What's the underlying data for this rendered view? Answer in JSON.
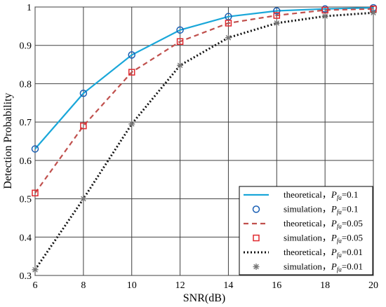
{
  "chart_data": {
    "type": "line",
    "xlabel": "SNR(dB)",
    "ylabel": "Detection Probability",
    "xlim": [
      6,
      20
    ],
    "ylim": [
      0.3,
      1.0
    ],
    "x_ticks": [
      6,
      8,
      10,
      12,
      14,
      16,
      18,
      20
    ],
    "y_ticks": [
      0.3,
      0.4,
      0.5,
      0.6,
      0.7,
      0.8,
      0.9,
      1.0
    ],
    "x_tick_labels": [
      "6",
      "8",
      "10",
      "12",
      "14",
      "16",
      "18",
      "20"
    ],
    "y_tick_labels": [
      "0.3",
      "0.4",
      "0.5",
      "0.6",
      "0.7",
      "0.8",
      "0.9",
      "1"
    ],
    "grid": true,
    "legend_position": "bottom-right",
    "x": [
      6,
      8,
      10,
      12,
      14,
      16,
      18,
      20
    ],
    "series": [
      {
        "kind": "theoretical",
        "label": "theoretical",
        "pfa": "0.1",
        "style": "solid",
        "marker": "none",
        "color": "#1aa7d9",
        "values": [
          0.63,
          0.775,
          0.875,
          0.94,
          0.975,
          0.99,
          0.995,
          0.998
        ]
      },
      {
        "kind": "simulation",
        "label": "simulation",
        "pfa": "0.1",
        "style": "none",
        "marker": "circle",
        "color": "#1a5fb4",
        "values": [
          0.63,
          0.775,
          0.875,
          0.94,
          0.975,
          0.99,
          0.995,
          0.998
        ]
      },
      {
        "kind": "theoretical",
        "label": "theoretical",
        "pfa": "0.05",
        "style": "dashed",
        "marker": "none",
        "color": "#c0504d",
        "values": [
          0.515,
          0.69,
          0.83,
          0.91,
          0.958,
          0.978,
          0.992,
          0.995
        ]
      },
      {
        "kind": "simulation",
        "label": "simulation",
        "pfa": "0.05",
        "style": "none",
        "marker": "square",
        "color": "#e0282e",
        "values": [
          0.515,
          0.69,
          0.83,
          0.91,
          0.958,
          0.978,
          0.992,
          0.995
        ]
      },
      {
        "kind": "theoretical",
        "label": "theoretical",
        "pfa": "0.01",
        "style": "dotted",
        "marker": "none",
        "color": "#111111",
        "values": [
          0.315,
          0.5,
          0.695,
          0.848,
          0.92,
          0.958,
          0.976,
          0.985
        ]
      },
      {
        "kind": "simulation",
        "label": "simulation",
        "pfa": "0.01",
        "style": "none",
        "marker": "star",
        "color": "#777777",
        "values": [
          0.315,
          0.5,
          0.695,
          0.848,
          0.92,
          0.958,
          0.976,
          0.985
        ]
      }
    ],
    "legend": {
      "entries": [
        {
          "text": "theoretical，",
          "pfa_value": "=0.1"
        },
        {
          "text": "simulation，",
          "pfa_value": "=0.1"
        },
        {
          "text": "theoretical，",
          "pfa_value": "=0.05"
        },
        {
          "text": "simulation，",
          "pfa_value": "=0.05"
        },
        {
          "text": "theoretical，",
          "pfa_value": "=0.01"
        },
        {
          "text": "simulation，",
          "pfa_value": "=0.01"
        }
      ],
      "symbol_main": "P",
      "symbol_sub": "fa"
    }
  }
}
